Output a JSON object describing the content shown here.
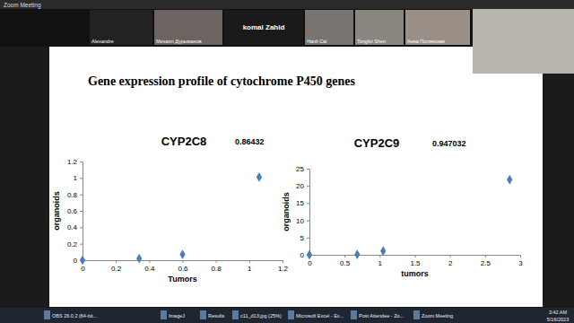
{
  "window": {
    "title": "Zoom Meeting",
    "participants": [
      "Alexandre",
      "Михаил Дурыманов",
      "komal Zahid",
      "Hanli Cai",
      "Tongfei Shen",
      "Анна Полянская"
    ],
    "taskbar": [
      "OBS 26.0.2 (64-bit...",
      "ImageJ",
      "Results",
      "c11_d13.jpg (25%)",
      "Microsoft Excel - Ex...",
      "Post Attendee - Zo...",
      "Zoom Meeting"
    ],
    "time": "3:42 AM",
    "date": "5/16/2023"
  },
  "slide": {
    "title": "Gene expression profile of cytochrome P450 genes"
  },
  "chart_data": [
    {
      "type": "scatter",
      "title": "CYP2C8",
      "annotation": "0.86432",
      "x_label": "Tumors",
      "y_label": "organoids",
      "x": [
        0,
        0.34,
        0.6,
        1.06
      ],
      "values": [
        0,
        0.02,
        0.07,
        1.01
      ],
      "xlim": [
        0,
        1.2
      ],
      "xticks": [
        0,
        0.2,
        0.4,
        0.6,
        0.8,
        1,
        1.2
      ],
      "ylim": [
        0,
        1.2
      ],
      "yticks": [
        0,
        0.2,
        0.4,
        0.6,
        0.8,
        1,
        1.2
      ],
      "color": "#4a7ebb",
      "marker": "diamond"
    },
    {
      "type": "scatter",
      "title": "CYP2C9",
      "annotation": "0.947032",
      "x_label": "tumors",
      "y_label": "organoids",
      "x": [
        0,
        0.68,
        1.05,
        2.85
      ],
      "values": [
        0,
        0.1,
        1.1,
        21.8
      ],
      "xlim": [
        0,
        3
      ],
      "xticks": [
        0,
        0.5,
        1,
        1.5,
        2,
        2.5,
        3
      ],
      "ylim": [
        0,
        25
      ],
      "yticks": [
        0,
        5,
        10,
        15,
        20,
        25
      ],
      "color": "#4a7ebb",
      "marker": "diamond"
    }
  ]
}
